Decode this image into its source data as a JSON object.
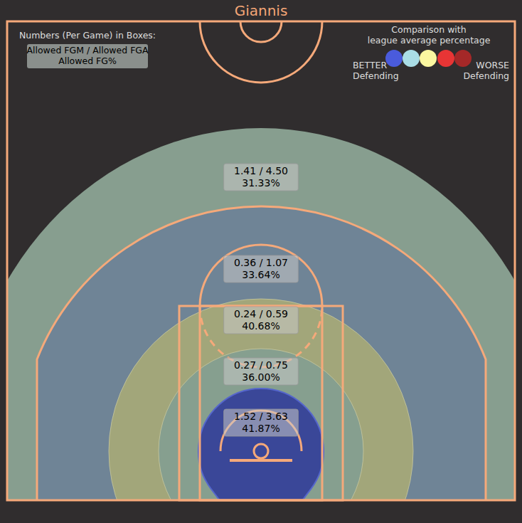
{
  "chart_data": {
    "type": "shot_chart",
    "title": "Giannis",
    "info_title": "Numbers (Per Game) in Boxes:",
    "info_lines": [
      "Allowed FGM / Allowed FGA",
      "Allowed FG%"
    ],
    "legend_title": [
      "Comparison with",
      "league average percentage"
    ],
    "legend_better": [
      "BETTER",
      "Defending"
    ],
    "legend_worse": [
      "WORSE",
      "Defending"
    ],
    "legend_colors": [
      "#4a5bdc",
      "#aadde6",
      "#fbf7a0",
      "#e83535",
      "#a52828"
    ],
    "zones": [
      {
        "fgm": 1.41,
        "fga": 4.5,
        "fg_pct": 31.33,
        "value_labels": [
          "1.41 / 4.50",
          "31.33%"
        ],
        "color": "#879e8f"
      },
      {
        "fgm": 0.36,
        "fga": 1.07,
        "fg_pct": 33.64,
        "value_labels": [
          "0.36 / 1.07",
          "33.64%"
        ],
        "color": "#6f8496"
      },
      {
        "fgm": 0.24,
        "fga": 0.59,
        "fg_pct": 40.68,
        "value_labels": [
          "0.24 / 0.59",
          "40.68%"
        ],
        "color": "#a2a67a"
      },
      {
        "fgm": 0.27,
        "fga": 0.75,
        "fg_pct": 36.0,
        "value_labels": [
          "0.27 / 0.75",
          "36.00%"
        ],
        "color": "#869f8f"
      },
      {
        "fgm": 1.52,
        "fga": 3.63,
        "fg_pct": 41.87,
        "value_labels": [
          "1.52 / 3.63",
          "41.87%"
        ],
        "color": "#3a4798"
      }
    ]
  }
}
